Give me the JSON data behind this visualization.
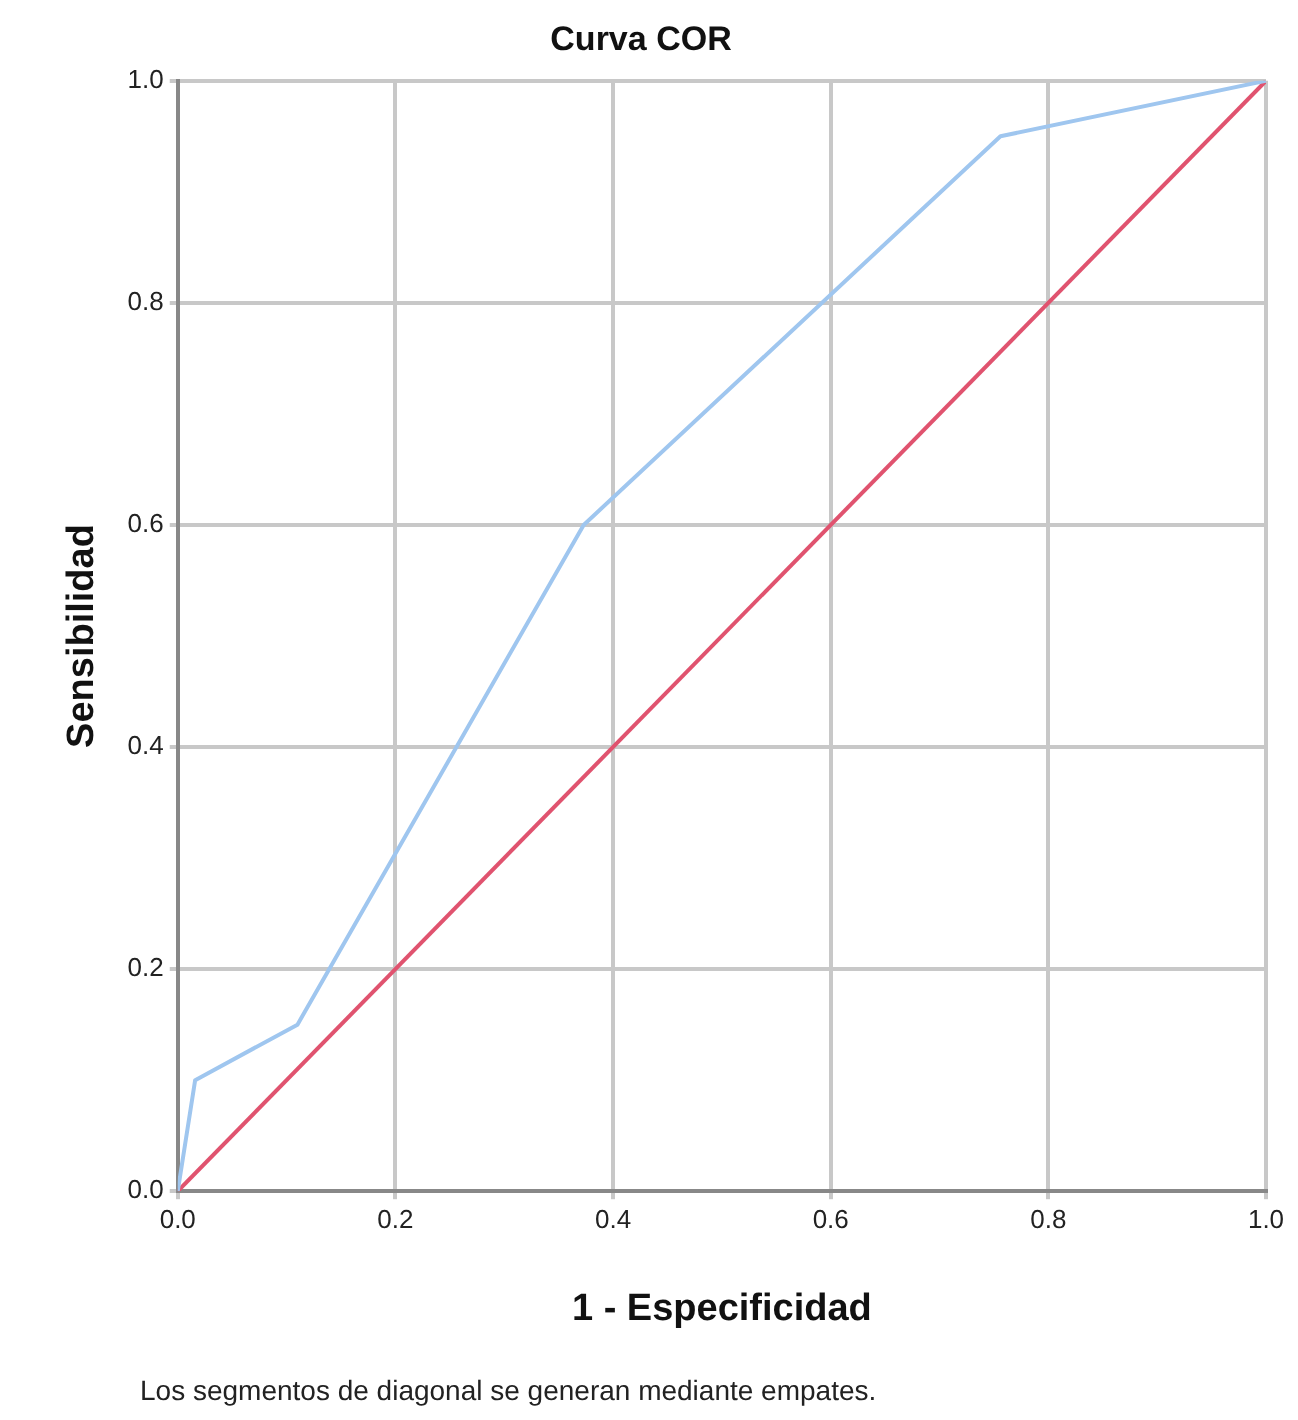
{
  "chart_data": {
    "type": "line",
    "title": "Curva COR",
    "xlabel": "1 - Especificidad",
    "ylabel": "Sensibilidad",
    "annotations": [
      "Los segmentos de diagonal se generan mediante empates."
    ],
    "series": [
      {
        "color": "#9fc6ef",
        "x": [
          0,
          0.016,
          0.11,
          0.373,
          0.756,
          1
        ],
        "values": [
          0,
          0.1,
          0.15,
          0.6,
          0.95,
          1
        ]
      },
      {
        "color": "#e0536f",
        "x": [
          0,
          1
        ],
        "values": [
          0,
          1
        ]
      }
    ],
    "xlim": [
      0,
      1
    ],
    "ylim": [
      0,
      1
    ],
    "xticks": [
      {
        "value": 0,
        "label": "0.0"
      },
      {
        "value": 0.2,
        "label": "0.2"
      },
      {
        "value": 0.4,
        "label": "0.4"
      },
      {
        "value": 0.6,
        "label": "0.6"
      },
      {
        "value": 0.8,
        "label": "0.8"
      },
      {
        "value": 1,
        "label": "1.0"
      }
    ],
    "yticks": [
      {
        "value": 0,
        "label": "0.0"
      },
      {
        "value": 0.2,
        "label": "0.2"
      },
      {
        "value": 0.4,
        "label": "0.4"
      },
      {
        "value": 0.6,
        "label": "0.6"
      },
      {
        "value": 0.8,
        "label": "0.8"
      },
      {
        "value": 1,
        "label": "1.0"
      }
    ],
    "grid": true,
    "legend": false,
    "marker": "none",
    "line_style": "solid"
  }
}
